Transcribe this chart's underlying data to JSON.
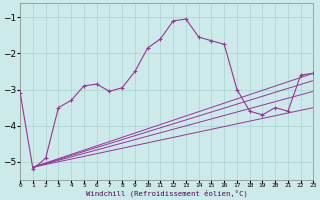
{
  "xlabel": "Windchill (Refroidissement éolien,°C)",
  "background_color": "#cdeaea",
  "grid_color": "#a8d4d0",
  "line_color": "#993399",
  "xlim": [
    0,
    23
  ],
  "ylim": [
    -5.5,
    -0.6
  ],
  "yticks": [
    -5,
    -4,
    -3,
    -2,
    -1
  ],
  "xticks": [
    0,
    1,
    2,
    3,
    4,
    5,
    6,
    7,
    8,
    9,
    10,
    11,
    12,
    13,
    14,
    15,
    16,
    17,
    18,
    19,
    20,
    21,
    22,
    23
  ],
  "main_line": {
    "x": [
      0,
      1,
      2,
      3,
      4,
      5,
      6,
      7,
      8,
      9,
      10,
      11,
      12,
      13,
      14,
      15,
      16,
      17,
      18,
      19,
      20,
      21,
      22,
      23
    ],
    "y": [
      -3.1,
      -5.2,
      -4.9,
      -3.5,
      -3.3,
      -2.9,
      -2.85,
      -3.05,
      -2.95,
      -2.5,
      -1.85,
      -1.6,
      -1.1,
      -1.05,
      -1.55,
      -1.65,
      -1.75,
      -3.0,
      -3.6,
      -3.7,
      -3.5,
      -3.6,
      -2.6,
      -2.55
    ]
  },
  "straight_lines": [
    {
      "x": [
        1,
        23
      ],
      "y": [
        -5.15,
        -2.55
      ]
    },
    {
      "x": [
        1,
        23
      ],
      "y": [
        -5.15,
        -2.75
      ]
    },
    {
      "x": [
        1,
        23
      ],
      "y": [
        -5.15,
        -3.05
      ]
    },
    {
      "x": [
        1,
        23
      ],
      "y": [
        -5.15,
        -3.5
      ]
    }
  ]
}
